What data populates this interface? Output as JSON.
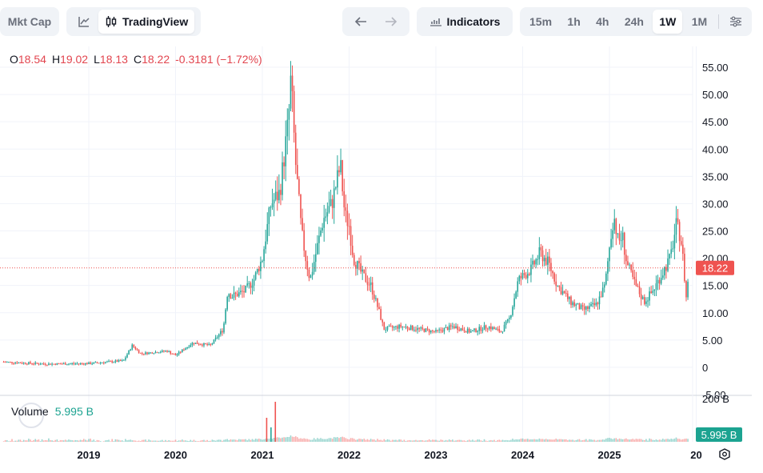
{
  "toolbar": {
    "mkt_cap_label": "Mkt Cap",
    "line_chart_icon": "line-chart-icon",
    "tradingview_label": "TradingView",
    "back_icon": "arrow-left-icon",
    "forward_icon": "arrow-right-icon",
    "indicators_label": "Indicators",
    "intervals": [
      {
        "label": "15m",
        "active": false
      },
      {
        "label": "1h",
        "active": false
      },
      {
        "label": "4h",
        "active": false
      },
      {
        "label": "24h",
        "active": false
      },
      {
        "label": "1W",
        "active": true
      },
      {
        "label": "1M",
        "active": false
      }
    ],
    "settings_icon": "sliders-icon"
  },
  "legend": {
    "o_key": "O",
    "o_val": "18.54",
    "h_key": "H",
    "h_val": "19.02",
    "l_key": "L",
    "l_val": "18.13",
    "c_key": "C",
    "c_val": "18.22",
    "change": "-0.3181 (−1.72%)"
  },
  "volume_legend": {
    "label": "Volume",
    "value": "5.995 B"
  },
  "colors": {
    "up": "#26a69a",
    "down": "#ef5350",
    "price_line": "#ef5350",
    "volume_badge": "#1ca391"
  },
  "chart_data": {
    "type": "candlestick",
    "y_ticks": [
      "55.00",
      "50.00",
      "45.00",
      "40.00",
      "35.00",
      "30.00",
      "25.00",
      "20.00",
      "15.00",
      "10.00",
      "5.00",
      "0",
      "-5.00"
    ],
    "volume_tick": "200 B",
    "x_ticks": [
      "2019",
      "2020",
      "2021",
      "2022",
      "2023",
      "2024",
      "2025",
      "20"
    ],
    "last_price_label": "18.22",
    "last_price": 18.22,
    "last_volume_label": "5.995 B",
    "ylim": [
      -5,
      55
    ],
    "price_path": [
      [
        2018.0,
        1.0
      ],
      [
        2018.5,
        0.6
      ],
      [
        2019.0,
        0.7
      ],
      [
        2019.4,
        1.2
      ],
      [
        2019.5,
        4.0
      ],
      [
        2019.6,
        2.5
      ],
      [
        2019.9,
        3.0
      ],
      [
        2020.0,
        2.2
      ],
      [
        2020.2,
        4.5
      ],
      [
        2020.4,
        4.0
      ],
      [
        2020.55,
        7.0
      ],
      [
        2020.6,
        14.0
      ],
      [
        2020.65,
        13.0
      ],
      [
        2020.8,
        14.0
      ],
      [
        2020.9,
        16.0
      ],
      [
        2021.0,
        20.0
      ],
      [
        2021.1,
        30.0
      ],
      [
        2021.2,
        32.0
      ],
      [
        2021.3,
        45.0
      ],
      [
        2021.33,
        53.0
      ],
      [
        2021.38,
        38.0
      ],
      [
        2021.45,
        25.0
      ],
      [
        2021.5,
        20.0
      ],
      [
        2021.55,
        16.0
      ],
      [
        2021.7,
        27.0
      ],
      [
        2021.8,
        30.0
      ],
      [
        2021.9,
        37.0
      ],
      [
        2021.95,
        28.0
      ],
      [
        2022.0,
        26.0
      ],
      [
        2022.05,
        20.0
      ],
      [
        2022.15,
        17.0
      ],
      [
        2022.25,
        15.0
      ],
      [
        2022.35,
        10.0
      ],
      [
        2022.4,
        7.0
      ],
      [
        2022.6,
        7.5
      ],
      [
        2022.8,
        7.0
      ],
      [
        2023.0,
        6.5
      ],
      [
        2023.2,
        7.5
      ],
      [
        2023.4,
        6.5
      ],
      [
        2023.6,
        7.5
      ],
      [
        2023.75,
        6.5
      ],
      [
        2023.85,
        9.0
      ],
      [
        2023.95,
        16.0
      ],
      [
        2024.1,
        18.0
      ],
      [
        2024.2,
        21.0
      ],
      [
        2024.3,
        19.0
      ],
      [
        2024.4,
        15.0
      ],
      [
        2024.55,
        12.0
      ],
      [
        2024.7,
        10.5
      ],
      [
        2024.85,
        11.5
      ],
      [
        2024.95,
        15.0
      ],
      [
        2025.0,
        22.0
      ],
      [
        2025.05,
        28.0
      ],
      [
        2025.1,
        23.0
      ],
      [
        2025.15,
        24.0
      ],
      [
        2025.2,
        19.0
      ],
      [
        2025.3,
        15.0
      ],
      [
        2025.4,
        12.0
      ],
      [
        2025.5,
        14.0
      ],
      [
        2025.6,
        17.0
      ],
      [
        2025.7,
        20.0
      ],
      [
        2025.77,
        26.0
      ],
      [
        2025.82,
        24.0
      ],
      [
        2025.86,
        18.0
      ],
      [
        2025.88,
        12.0
      ],
      [
        2025.92,
        18.5
      ]
    ]
  }
}
